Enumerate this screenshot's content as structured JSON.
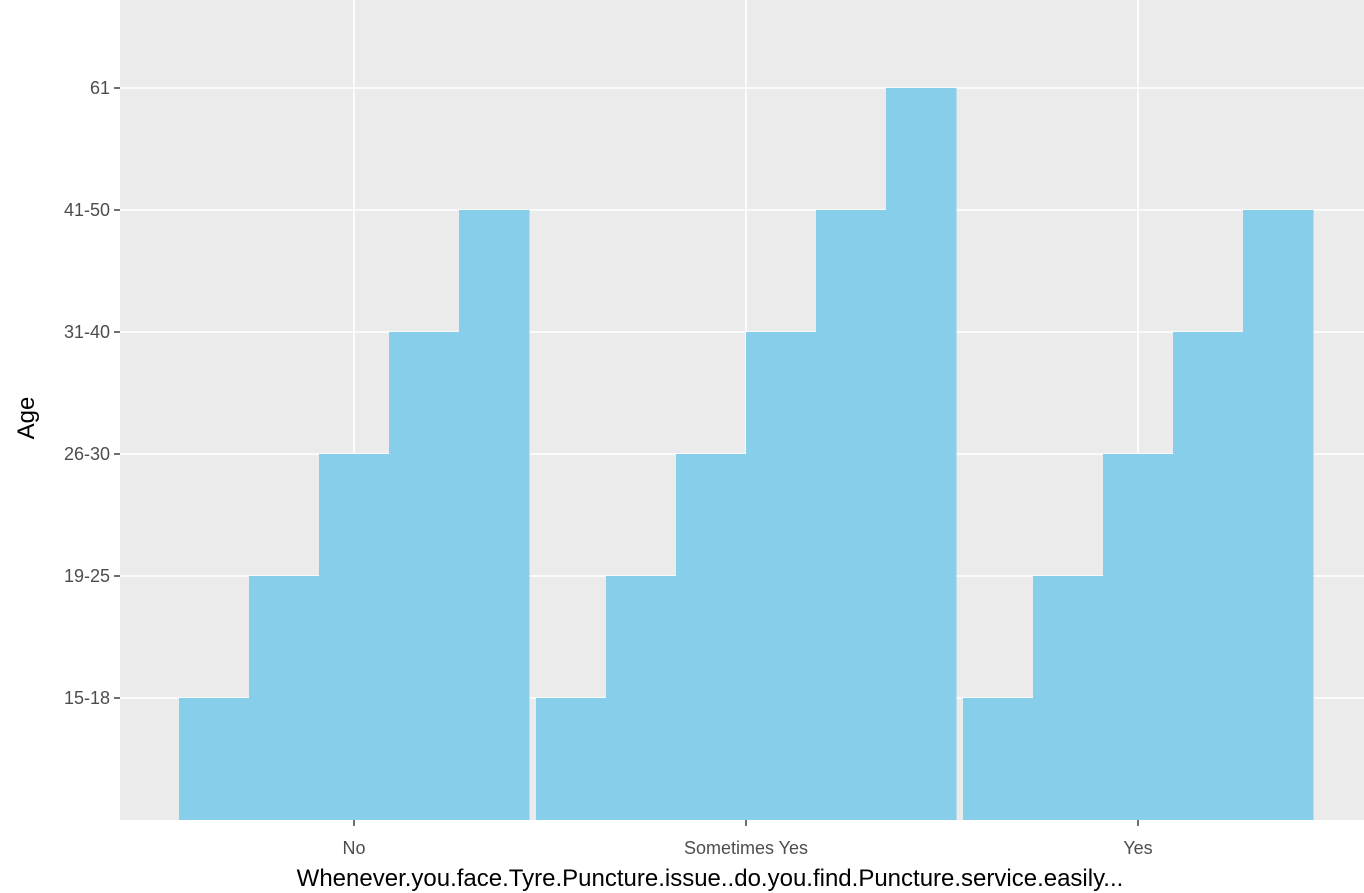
{
  "chart_data": {
    "type": "bar",
    "title": "",
    "xlabel": "Whenever.you.face.Tyre.Puncture.issue..do.you.find.Puncture.service.easily...",
    "ylabel": "Age",
    "categories": [
      "No",
      "Sometimes Yes",
      "Yes"
    ],
    "y_levels": [
      "15-18",
      "19-25",
      "26-30",
      "31-40",
      "41-50",
      "61"
    ],
    "groups": [
      {
        "category": "No",
        "bar_levels": [
          "15-18",
          "19-25",
          "26-30",
          "31-40",
          "41-50"
        ]
      },
      {
        "category": "Sometimes Yes",
        "bar_levels": [
          "15-18",
          "19-25",
          "26-30",
          "31-40",
          "41-50",
          "61"
        ]
      },
      {
        "category": "Yes",
        "bar_levels": [
          "15-18",
          "19-25",
          "26-30",
          "31-40",
          "41-50"
        ]
      }
    ],
    "bar_color": "#87CEEB",
    "panel_background": "#EBEBEB",
    "grid_color": "#FFFFFF",
    "grid": true,
    "legend": "none"
  }
}
